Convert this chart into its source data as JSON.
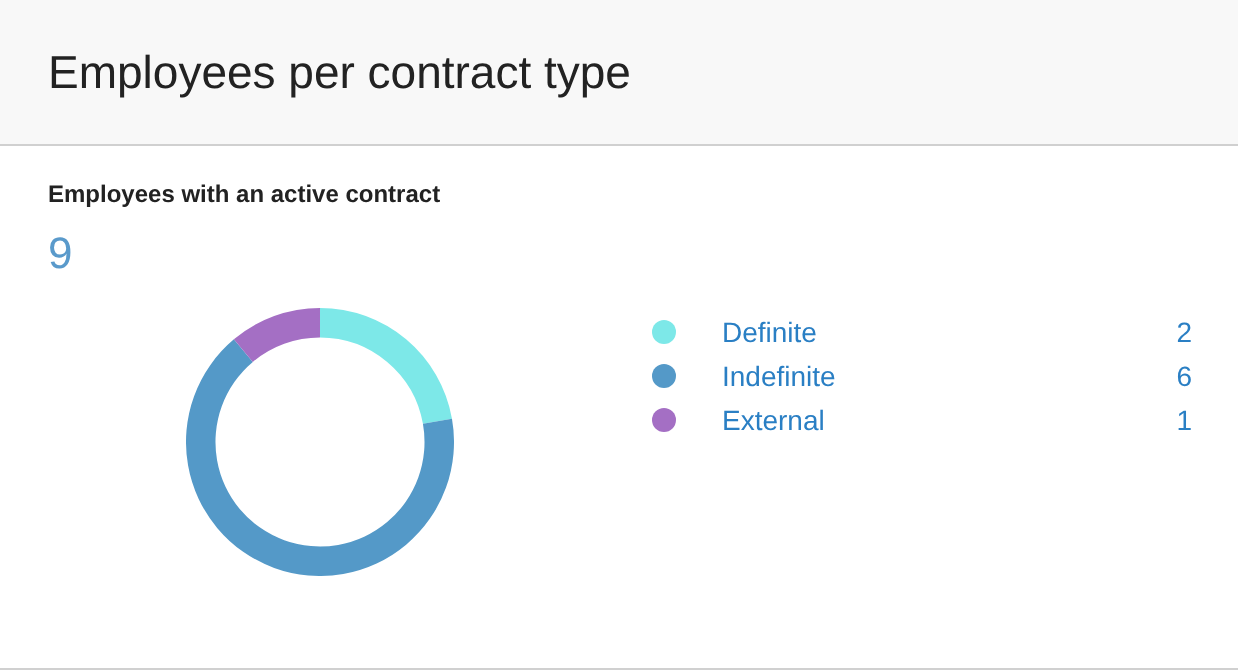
{
  "chart_data": {
    "type": "donut",
    "title": "Employees per contract type",
    "subtitle": "Employees with an active contract",
    "annotations": [
      "9"
    ],
    "categories": [
      "Definite",
      "Indefinite",
      "External"
    ],
    "values": [
      2,
      6,
      1
    ],
    "colors": [
      "#7de8e8",
      "#5499c8",
      "#a46fc4"
    ],
    "legend": "right",
    "data_labels": true
  }
}
